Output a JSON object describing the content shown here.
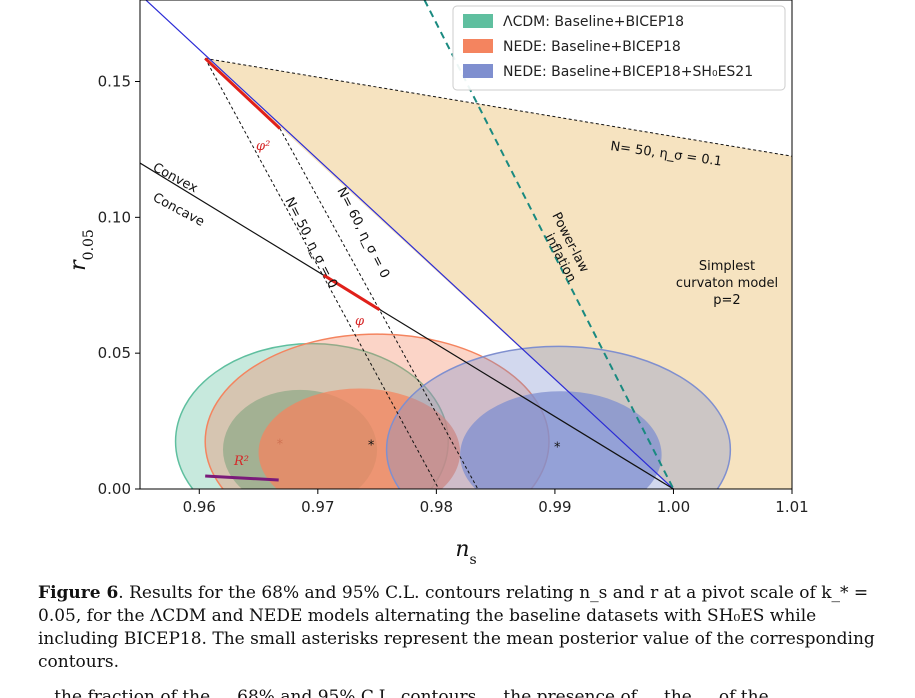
{
  "chart_data": {
    "type": "scatter",
    "xlabel": "n_s",
    "ylabel": "r_0.05",
    "xlim": [
      0.955,
      1.01
    ],
    "ylim": [
      0.0,
      0.18
    ],
    "xticks": [
      "0.96",
      "0.97",
      "0.98",
      "0.99",
      "1.00",
      "1.01"
    ],
    "xtick_values": [
      0.96,
      0.97,
      0.98,
      0.99,
      1.0,
      1.01
    ],
    "yticks": [
      "0.00",
      "0.05",
      "0.10",
      "0.15"
    ],
    "ytick_values": [
      0.0,
      0.05,
      0.1,
      0.15
    ],
    "grid": false,
    "legend_position": "top-right",
    "legend": [
      {
        "label": "ΛCDM: Baseline+BICEP18",
        "color": "#5fbf9f"
      },
      {
        "label": "NEDE: Baseline+BICEP18",
        "color": "#f4845f"
      },
      {
        "label": "NEDE: Baseline+BICEP18+SH₀ES21",
        "color": "#7f8fcf"
      }
    ],
    "contours": [
      {
        "name": "ΛCDM: Baseline+BICEP18",
        "color": "#5fbf9f",
        "mean": [
          0.9668,
          0.0168
        ],
        "c95": {
          "cx": 0.9695,
          "cy": 0.0175,
          "rx": 0.0115,
          "ry": 0.036
        },
        "c68": {
          "cx": 0.9685,
          "cy": 0.0145,
          "rx": 0.0065,
          "ry": 0.022
        }
      },
      {
        "name": "NEDE: Baseline+BICEP18",
        "color": "#f4845f",
        "mean": [
          0.9745,
          0.0163
        ],
        "c95": {
          "cx": 0.975,
          "cy": 0.0175,
          "rx": 0.0145,
          "ry": 0.0395
        },
        "c68": {
          "cx": 0.9735,
          "cy": 0.0135,
          "rx": 0.0085,
          "ry": 0.0235
        }
      },
      {
        "name": "NEDE: Baseline+BICEP18+SH₀ES21",
        "color": "#7f8fcf",
        "mean": [
          0.9902,
          0.0157
        ],
        "c95": {
          "cx": 0.9903,
          "cy": 0.0145,
          "rx": 0.0145,
          "ry": 0.038
        },
        "c68": {
          "cx": 0.9905,
          "cy": 0.0125,
          "rx": 0.0085,
          "ry": 0.0235
        }
      }
    ],
    "curvaton_region": [
      [
        0.9605,
        0.1585
      ],
      [
        1.01,
        0.1225
      ],
      [
        1.01,
        0.0
      ],
      [
        1.0,
        0.0
      ]
    ],
    "lines": [
      {
        "name": "phi2-line",
        "color": "#2b2bd6",
        "points": [
          [
            0.955,
            0.182
          ],
          [
            1.0,
            0.0
          ]
        ]
      },
      {
        "name": "phi-line",
        "color": "#111111",
        "points": [
          [
            0.955,
            0.12
          ],
          [
            1.0,
            0.0
          ]
        ]
      },
      {
        "name": "power-law-inflation",
        "color": "#1a8a80",
        "dashed": true,
        "points": [
          [
            0.979,
            0.18
          ],
          [
            1.0,
            0.0
          ]
        ]
      },
      {
        "name": "N50-line",
        "color": "#111111",
        "dashed": true,
        "thin": true,
        "points": [
          [
            0.9605,
            0.1585
          ],
          [
            0.9802,
            0.0
          ]
        ]
      },
      {
        "name": "N60-line",
        "color": "#111111",
        "dashed": true,
        "thin": true,
        "points": [
          [
            0.9668,
            0.1327
          ],
          [
            0.9835,
            0.0
          ]
        ]
      },
      {
        "name": "eta-boundary",
        "color": "#111111",
        "dashed": true,
        "thin": true,
        "points": [
          [
            0.9605,
            0.1585
          ],
          [
            1.01,
            0.1225
          ]
        ]
      }
    ],
    "red_segments": [
      {
        "points": [
          [
            0.9605,
            0.1585
          ],
          [
            0.9668,
            0.1327
          ]
        ]
      },
      {
        "points": [
          [
            0.9705,
            0.0787
          ],
          [
            0.9752,
            0.066
          ]
        ]
      }
    ],
    "r2_segment": {
      "color": "#7a1a7a",
      "points": [
        [
          0.9605,
          0.0048
        ],
        [
          0.9667,
          0.0033
        ]
      ]
    },
    "annotations": {
      "n50_eta": "N= 50,  η_σ = 0.1",
      "n50_eta0": "N= 50,  η_σ = 0",
      "n60_eta0": "N= 60,  η_σ = 0",
      "phi2": "φ²",
      "phi": "φ",
      "r2": "R²",
      "convex": "Convex",
      "concave": "Concave",
      "power_law": [
        "Power-law",
        "inflation"
      ],
      "curvaton": [
        "Simplest",
        "curvaton model",
        "p=2"
      ]
    }
  },
  "caption": {
    "label": "Figure 6",
    "text": ". Results for the 68% and 95% C.L. contours relating n_s and r at a pivot scale of k_* = 0.05, for the ΛCDM and NEDE models alternating the baseline datasets with SH₀ES while including BICEP18. The small asterisks represent the mean posterior value of the corresponding contours."
  },
  "cutoff_text": "...the fraction of the ... 68% and 95% C.L. contours ... the presence of ... the ... of the ..."
}
